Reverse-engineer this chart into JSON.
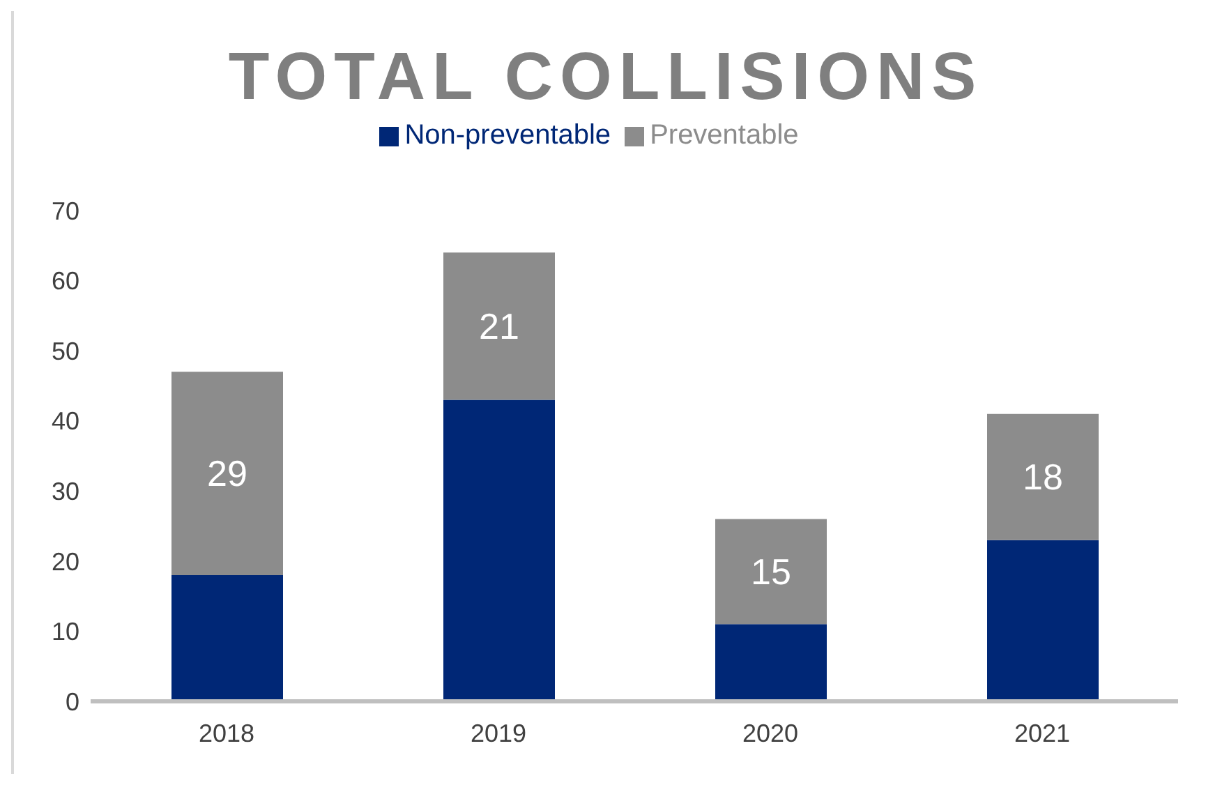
{
  "chart_data": {
    "type": "bar",
    "title": "TOTAL COLLISIONS",
    "stacked": true,
    "categories": [
      "2018",
      "2019",
      "2020",
      "2021"
    ],
    "series": [
      {
        "name": "Non-preventable",
        "color": "#002776",
        "values": [
          18,
          43,
          11,
          23
        ]
      },
      {
        "name": "Preventable",
        "color": "#8c8c8c",
        "values": [
          29,
          21,
          15,
          18
        ],
        "value_labels": [
          "29",
          "21",
          "15",
          "18"
        ]
      }
    ],
    "ylim": [
      0,
      70
    ],
    "yticks": [
      0,
      10,
      20,
      30,
      40,
      50,
      60,
      70
    ],
    "grid": false,
    "legend": "top"
  }
}
